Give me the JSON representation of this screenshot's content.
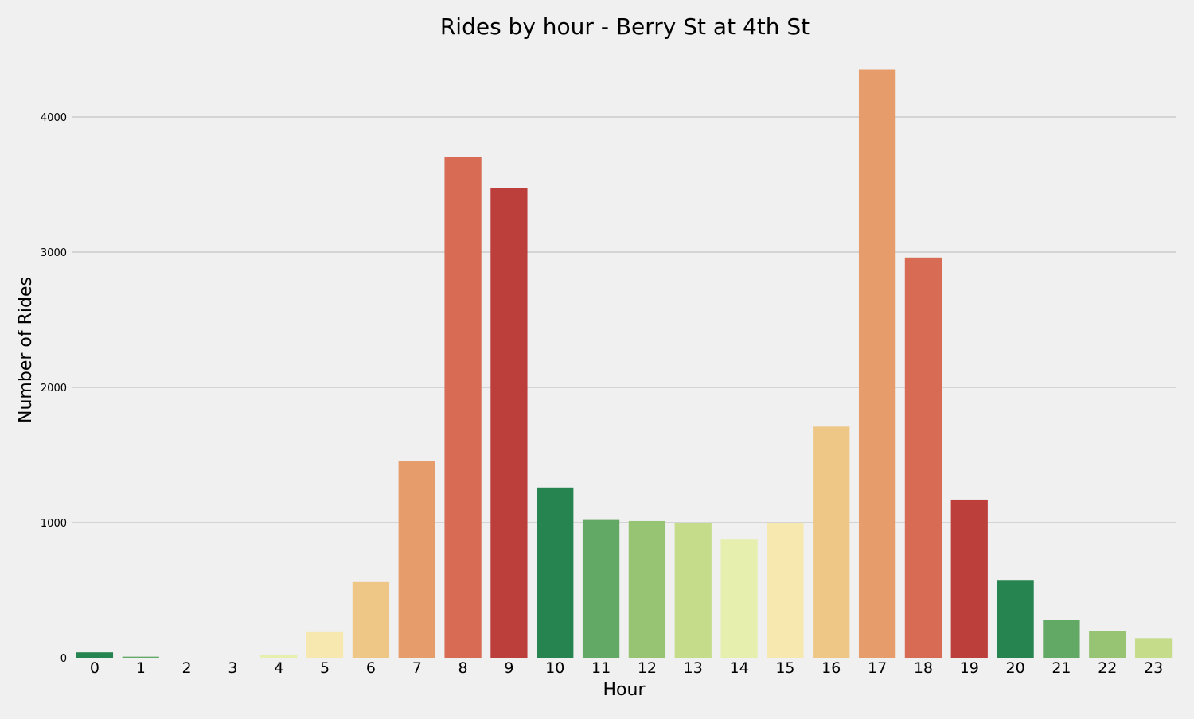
{
  "chart_data": {
    "type": "bar",
    "title": "Rides by hour - Berry St at 4th St",
    "xlabel": "Hour",
    "ylabel": "Number of Rides",
    "categories": [
      "0",
      "1",
      "2",
      "3",
      "4",
      "5",
      "6",
      "7",
      "8",
      "9",
      "10",
      "11",
      "12",
      "13",
      "14",
      "15",
      "16",
      "17",
      "18",
      "19",
      "20",
      "21",
      "22",
      "23"
    ],
    "values": [
      40,
      8,
      0,
      0,
      20,
      195,
      560,
      1455,
      3705,
      3475,
      1260,
      1020,
      1012,
      1000,
      875,
      995,
      1710,
      4350,
      2960,
      1165,
      575,
      280,
      200,
      145
    ],
    "colors": [
      "#268451",
      "#62a966",
      "#96c473",
      "#c5dc8a",
      "#e6efae",
      "#f6e8ae",
      "#eec786",
      "#e79d6b",
      "#d86b53",
      "#bd3f3c",
      "#268451",
      "#62a966",
      "#96c473",
      "#c5dc8a",
      "#e6efae",
      "#f6e8ae",
      "#eec786",
      "#e79d6b",
      "#d86b53",
      "#bd3f3c",
      "#268451",
      "#62a966",
      "#96c473",
      "#c5dc8a"
    ],
    "yticks": [
      0,
      1000,
      2000,
      3000,
      4000
    ],
    "ylim": [
      0,
      4350
    ],
    "grid": true,
    "background": "#f0f0f0"
  }
}
